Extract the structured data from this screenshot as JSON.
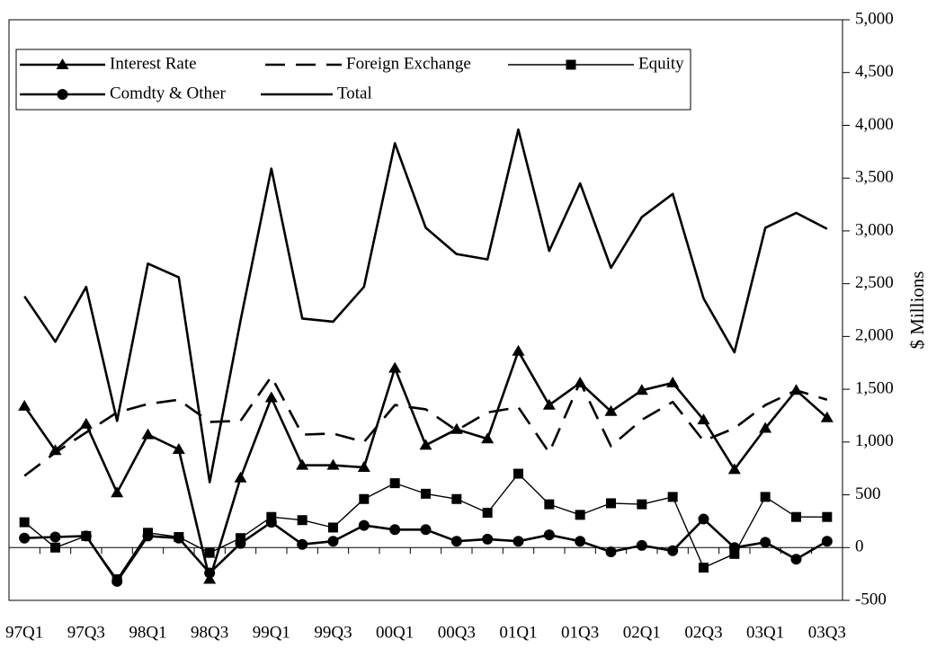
{
  "chart_data": {
    "type": "line",
    "y_axis_label": "$ Millions",
    "categories": [
      "97Q1",
      null,
      "97Q3",
      null,
      "98Q1",
      null,
      "98Q3",
      null,
      "99Q1",
      null,
      "99Q3",
      null,
      "00Q1",
      null,
      "00Q3",
      null,
      "01Q1",
      null,
      "01Q3",
      null,
      "02Q1",
      null,
      "02Q3",
      null,
      "03Q1",
      null,
      "03Q3"
    ],
    "series": [
      {
        "name": "Interest Rate",
        "color": "#000000",
        "marker": "triangle",
        "dash": false,
        "values": [
          1340,
          920,
          1170,
          520,
          1070,
          930,
          -300,
          660,
          1420,
          780,
          780,
          760,
          1700,
          970,
          1120,
          1030,
          1860,
          1350,
          1560,
          1290,
          1490,
          1560,
          1210,
          740,
          1130,
          1490,
          1230
        ]
      },
      {
        "name": "Foreign Exchange",
        "color": "#000000",
        "marker": "none",
        "dash": true,
        "values": [
          680,
          900,
          1090,
          1280,
          1360,
          1400,
          1190,
          1200,
          1620,
          1070,
          1080,
          1000,
          1350,
          1310,
          1110,
          1280,
          1330,
          900,
          1570,
          960,
          1210,
          1380,
          1010,
          1130,
          1350,
          1490,
          1400
        ]
      },
      {
        "name": "Equity",
        "color": "#000000",
        "marker": "square",
        "dash": false,
        "values": [
          240,
          0,
          110,
          -300,
          140,
          100,
          -50,
          90,
          290,
          260,
          190,
          460,
          610,
          510,
          460,
          330,
          700,
          410,
          310,
          420,
          410,
          480,
          -190,
          -60,
          480,
          290,
          290
        ]
      },
      {
        "name": "Comdty & Other",
        "color": "#000000",
        "marker": "circle",
        "dash": false,
        "values": [
          90,
          100,
          110,
          -320,
          110,
          90,
          -240,
          40,
          240,
          30,
          60,
          210,
          170,
          170,
          60,
          80,
          60,
          120,
          60,
          -40,
          20,
          -30,
          270,
          0,
          50,
          -110,
          60
        ]
      },
      {
        "name": "Total",
        "color": "#000000",
        "marker": "none",
        "dash": false,
        "values": [
          2380,
          1950,
          2470,
          1200,
          2690,
          2560,
          620,
          2150,
          3590,
          2170,
          2140,
          2470,
          3830,
          3030,
          2780,
          2730,
          3960,
          2810,
          3450,
          2650,
          3130,
          3350,
          2360,
          1850,
          3030,
          3170,
          3020
        ]
      }
    ],
    "ylim": [
      -500,
      5000
    ],
    "yticks": [
      {
        "value": -500,
        "label": "-500"
      },
      0,
      500,
      {
        "value": 1000,
        "label": "1,000"
      },
      {
        "value": 1500,
        "label": "1,500"
      },
      {
        "value": 2000,
        "label": "2,000"
      },
      {
        "value": 2500,
        "label": "2,500"
      },
      {
        "value": 3000,
        "label": "3,000"
      },
      {
        "value": 3500,
        "label": "3,500"
      },
      {
        "value": 4000,
        "label": "4,000"
      },
      {
        "value": 4500,
        "label": "4,500"
      },
      {
        "value": 5000,
        "label": "5,000"
      }
    ],
    "y_axis_side": "right",
    "legend": "top-left"
  }
}
